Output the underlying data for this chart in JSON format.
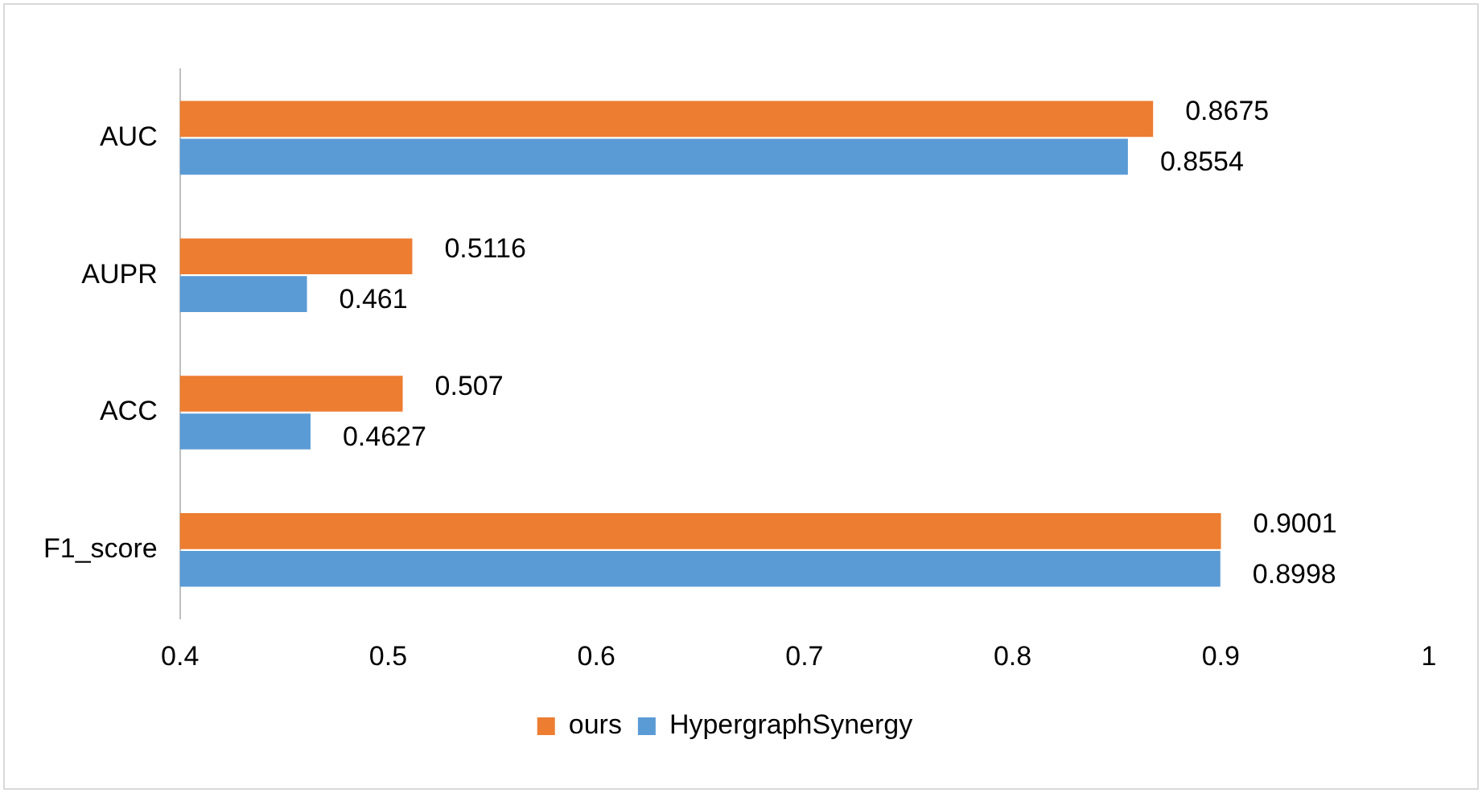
{
  "chart_data": {
    "type": "bar",
    "orientation": "horizontal",
    "categories": [
      "AUC",
      "AUPR",
      "ACC",
      "F1_score"
    ],
    "series": [
      {
        "name": "ours",
        "color": "#ed7d31",
        "values": [
          0.8675,
          0.5116,
          0.507,
          0.9001
        ]
      },
      {
        "name": "HypergraphSynergy",
        "color": "#5b9bd5",
        "values": [
          0.8554,
          0.461,
          0.4627,
          0.8998
        ]
      }
    ],
    "xlim": [
      0.4,
      1
    ],
    "xticks": [
      0.4,
      0.5,
      0.6,
      0.7,
      0.8,
      0.9,
      1
    ],
    "grid": false,
    "legend": "bottom",
    "data_labels": true
  }
}
